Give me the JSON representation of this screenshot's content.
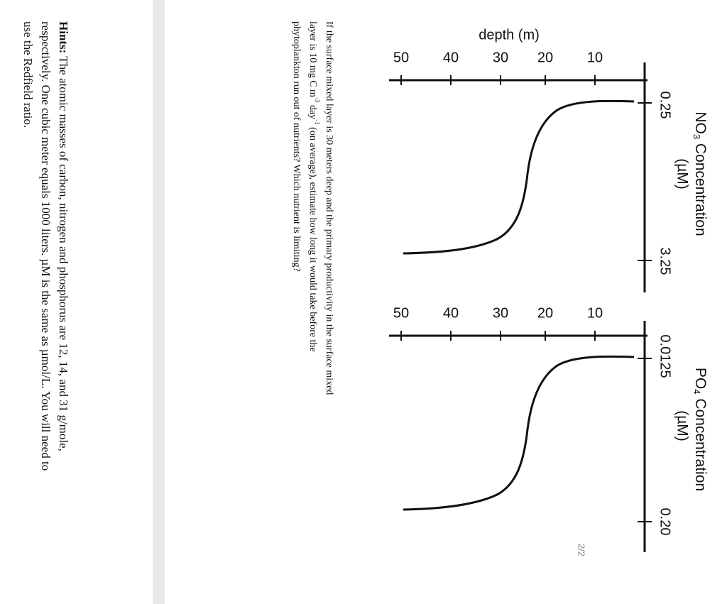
{
  "figure": {
    "no3": {
      "title": "NO",
      "subscript": "3",
      "title_rest": " Concentration",
      "unit": "(µM)",
      "depth_label": "depth (m)",
      "depth_ticks": [
        "10",
        "20",
        "30",
        "40",
        "50"
      ],
      "conc_ticks": [
        "0.25",
        "3.25"
      ]
    },
    "po4": {
      "title": "PO",
      "subscript": "4",
      "title_rest": " Concentration",
      "unit": "(µM)",
      "depth_ticks": [
        "10",
        "20",
        "30",
        "40",
        "50"
      ],
      "conc_ticks": [
        "0.0125",
        "0.20"
      ]
    }
  },
  "question": {
    "line1": "If the surface mixed layer is 30 meters deep and the primary productivity in the surface mixed",
    "line2": [
      "layer is 10 mg C m",
      "-3",
      " day",
      "-1",
      " (on average), estimate how long it would take before the"
    ],
    "line3": "phytoplankton run out of nutrients? Which nutrient is limiting?"
  },
  "hints": {
    "label": "Hints:",
    "line1": "  The atomic masses of carbon, nitrogen and phosphorus are 12, 14, and 31 g/mole,",
    "line2": "respectively.  One cubic meter equals 1000 liters.  µM is the same as µmol/L.  You will need to",
    "line3": "use the Redfield ratio."
  },
  "page_number": "2/2"
}
